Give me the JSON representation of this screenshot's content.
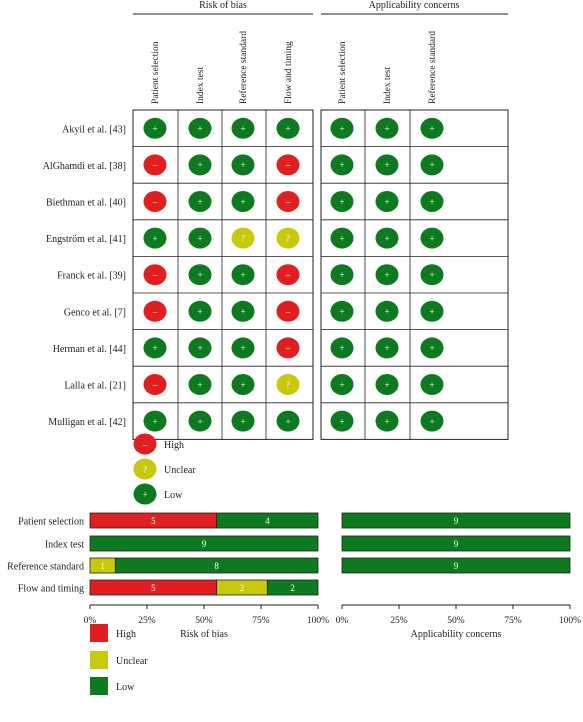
{
  "colors": {
    "high": "#e02020",
    "unclear": "#c8c80c",
    "low": "#0e7a1f",
    "border": "#222222"
  },
  "chart_data": [
    {
      "type": "table",
      "group_headers": [
        "Risk of bias",
        "Applicability concerns"
      ],
      "risk_columns": [
        "Patient selection",
        "Index test",
        "Reference standard",
        "Flow and timing"
      ],
      "applicability_columns": [
        "Patient selection",
        "Index test",
        "Reference standard"
      ],
      "rows": [
        {
          "study": "Akyil et al. [43]",
          "risk": [
            "low",
            "low",
            "low",
            "low"
          ],
          "applicability": [
            "low",
            "low",
            "low"
          ]
        },
        {
          "study": "AlGhamdi et al. [38]",
          "risk": [
            "high",
            "low",
            "low",
            "high"
          ],
          "applicability": [
            "low",
            "low",
            "low"
          ]
        },
        {
          "study": "Biethman et al. [40]",
          "risk": [
            "high",
            "low",
            "low",
            "high"
          ],
          "applicability": [
            "low",
            "low",
            "low"
          ]
        },
        {
          "study": "Engström et al. [41]",
          "risk": [
            "low",
            "low",
            "unclear",
            "unclear"
          ],
          "applicability": [
            "low",
            "low",
            "low"
          ]
        },
        {
          "study": "Franck et al. [39]",
          "risk": [
            "high",
            "low",
            "low",
            "high"
          ],
          "applicability": [
            "low",
            "low",
            "low"
          ]
        },
        {
          "study": "Genco et al. [7]",
          "risk": [
            "high",
            "low",
            "low",
            "high"
          ],
          "applicability": [
            "low",
            "low",
            "low"
          ]
        },
        {
          "study": "Herman et al. [44]",
          "risk": [
            "low",
            "low",
            "low",
            "high"
          ],
          "applicability": [
            "low",
            "low",
            "low"
          ]
        },
        {
          "study": "Lalla et al. [21]",
          "risk": [
            "high",
            "low",
            "low",
            "unclear"
          ],
          "applicability": [
            "low",
            "low",
            "low"
          ]
        },
        {
          "study": "Mulligan et al. [42]",
          "risk": [
            "low",
            "low",
            "low",
            "low"
          ],
          "applicability": [
            "low",
            "low",
            "low"
          ]
        }
      ],
      "symbols": {
        "high": "–",
        "unclear": "?",
        "low": "+"
      },
      "legend": [
        {
          "key": "high",
          "label": "High"
        },
        {
          "key": "unclear",
          "label": "Unclear"
        },
        {
          "key": "low",
          "label": "Low"
        }
      ]
    },
    {
      "type": "bar",
      "stacked": true,
      "orientation": "horizontal",
      "panels": [
        {
          "xlabel": "Risk of bias",
          "categories": [
            "Patient selection",
            "Index test",
            "Reference standard",
            "Flow and timing"
          ],
          "series": [
            {
              "name": "High",
              "key": "high",
              "values": [
                5,
                0,
                0,
                5
              ]
            },
            {
              "name": "Unclear",
              "key": "unclear",
              "values": [
                0,
                0,
                1,
                2
              ]
            },
            {
              "name": "Low",
              "key": "low",
              "values": [
                4,
                9,
                8,
                2
              ]
            }
          ]
        },
        {
          "xlabel": "Applicability concerns",
          "categories": [
            "Patient selection",
            "Index test",
            "Reference standard"
          ],
          "series": [
            {
              "name": "High",
              "key": "high",
              "values": [
                0,
                0,
                0
              ]
            },
            {
              "name": "Unclear",
              "key": "unclear",
              "values": [
                0,
                0,
                0
              ]
            },
            {
              "name": "Low",
              "key": "low",
              "values": [
                9,
                9,
                9
              ]
            }
          ]
        }
      ],
      "total": 9,
      "xlim": [
        0,
        100
      ],
      "xticks": [
        "0%",
        "25%",
        "50%",
        "75%",
        "100%"
      ],
      "legend": [
        {
          "key": "high",
          "label": "High"
        },
        {
          "key": "unclear",
          "label": "Unclear"
        },
        {
          "key": "low",
          "label": "Low"
        }
      ]
    }
  ]
}
